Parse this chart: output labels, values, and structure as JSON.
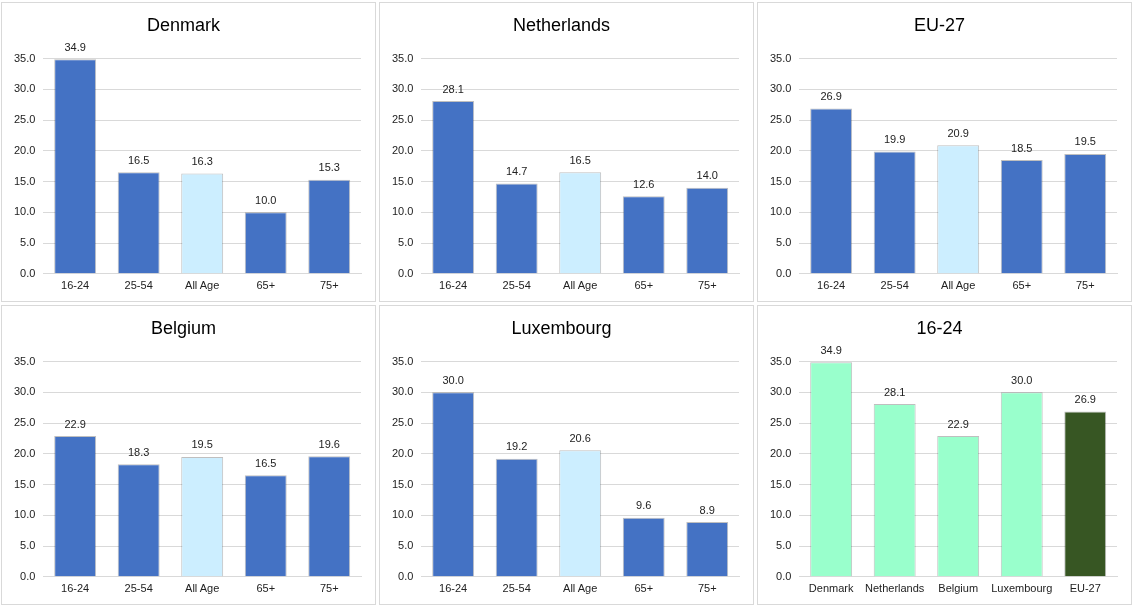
{
  "chart_data": [
    {
      "type": "bar",
      "title": "Denmark",
      "categories": [
        "16-24",
        "25-54",
        "All Age",
        "65+",
        "75+"
      ],
      "values": [
        34.9,
        16.5,
        16.3,
        10.0,
        15.3
      ],
      "value_labels": [
        "34.9",
        "16.5",
        "16.3",
        "10.0",
        "15.3"
      ],
      "colors": [
        "#4472c4",
        "#4472c4",
        "#cceeff",
        "#4472c4",
        "#4472c4"
      ],
      "ylim": [
        0,
        35
      ],
      "yticks": [
        {
          "value": 0,
          "label": "0.0"
        },
        {
          "value": 5,
          "label": "5.0"
        },
        {
          "value": 10,
          "label": "10.0"
        },
        {
          "value": 15,
          "label": "15.0"
        },
        {
          "value": 20,
          "label": "20.0"
        },
        {
          "value": 25,
          "label": "25.0"
        },
        {
          "value": 30,
          "label": "30.0"
        },
        {
          "value": 35,
          "label": "35.0"
        }
      ],
      "grid": "y",
      "legend": false
    },
    {
      "type": "bar",
      "title": "Netherlands",
      "categories": [
        "16-24",
        "25-54",
        "All Age",
        "65+",
        "75+"
      ],
      "values": [
        28.1,
        14.7,
        16.5,
        12.6,
        14.0
      ],
      "value_labels": [
        "28.1",
        "14.7",
        "16.5",
        "12.6",
        "14.0"
      ],
      "colors": [
        "#4472c4",
        "#4472c4",
        "#cceeff",
        "#4472c4",
        "#4472c4"
      ],
      "ylim": [
        0,
        35
      ],
      "yticks": [
        {
          "value": 0,
          "label": "0.0"
        },
        {
          "value": 5,
          "label": "5.0"
        },
        {
          "value": 10,
          "label": "10.0"
        },
        {
          "value": 15,
          "label": "15.0"
        },
        {
          "value": 20,
          "label": "20.0"
        },
        {
          "value": 25,
          "label": "25.0"
        },
        {
          "value": 30,
          "label": "30.0"
        },
        {
          "value": 35,
          "label": "35.0"
        }
      ],
      "grid": "y",
      "legend": false
    },
    {
      "type": "bar",
      "title": "EU-27",
      "categories": [
        "16-24",
        "25-54",
        "All Age",
        "65+",
        "75+"
      ],
      "values": [
        26.9,
        19.9,
        20.9,
        18.5,
        19.5
      ],
      "value_labels": [
        "26.9",
        "19.9",
        "20.9",
        "18.5",
        "19.5"
      ],
      "colors": [
        "#4472c4",
        "#4472c4",
        "#cceeff",
        "#4472c4",
        "#4472c4"
      ],
      "ylim": [
        0,
        35
      ],
      "yticks": [
        {
          "value": 0,
          "label": "0.0"
        },
        {
          "value": 5,
          "label": "5.0"
        },
        {
          "value": 10,
          "label": "10.0"
        },
        {
          "value": 15,
          "label": "15.0"
        },
        {
          "value": 20,
          "label": "20.0"
        },
        {
          "value": 25,
          "label": "25.0"
        },
        {
          "value": 30,
          "label": "30.0"
        },
        {
          "value": 35,
          "label": "35.0"
        }
      ],
      "grid": "y",
      "legend": false
    },
    {
      "type": "bar",
      "title": "Belgium",
      "categories": [
        "16-24",
        "25-54",
        "All Age",
        "65+",
        "75+"
      ],
      "values": [
        22.9,
        18.3,
        19.5,
        16.5,
        19.6
      ],
      "value_labels": [
        "22.9",
        "18.3",
        "19.5",
        "16.5",
        "19.6"
      ],
      "colors": [
        "#4472c4",
        "#4472c4",
        "#cceeff",
        "#4472c4",
        "#4472c4"
      ],
      "ylim": [
        0,
        35
      ],
      "yticks": [
        {
          "value": 0,
          "label": "0.0"
        },
        {
          "value": 5,
          "label": "5.0"
        },
        {
          "value": 10,
          "label": "10.0"
        },
        {
          "value": 15,
          "label": "15.0"
        },
        {
          "value": 20,
          "label": "20.0"
        },
        {
          "value": 25,
          "label": "25.0"
        },
        {
          "value": 30,
          "label": "30.0"
        },
        {
          "value": 35,
          "label": "35.0"
        }
      ],
      "grid": "y",
      "legend": false
    },
    {
      "type": "bar",
      "title": "Luxembourg",
      "categories": [
        "16-24",
        "25-54",
        "All Age",
        "65+",
        "75+"
      ],
      "values": [
        30.0,
        19.2,
        20.6,
        9.6,
        8.9
      ],
      "value_labels": [
        "30.0",
        "19.2",
        "20.6",
        "9.6",
        "8.9"
      ],
      "colors": [
        "#4472c4",
        "#4472c4",
        "#cceeff",
        "#4472c4",
        "#4472c4"
      ],
      "ylim": [
        0,
        35
      ],
      "yticks": [
        {
          "value": 0,
          "label": "0.0"
        },
        {
          "value": 5,
          "label": "5.0"
        },
        {
          "value": 10,
          "label": "10.0"
        },
        {
          "value": 15,
          "label": "15.0"
        },
        {
          "value": 20,
          "label": "20.0"
        },
        {
          "value": 25,
          "label": "25.0"
        },
        {
          "value": 30,
          "label": "30.0"
        },
        {
          "value": 35,
          "label": "35.0"
        }
      ],
      "grid": "y",
      "legend": false
    },
    {
      "type": "bar",
      "title": "16-24",
      "categories": [
        "Denmark",
        "Netherlands",
        "Belgium",
        "Luxembourg",
        "EU-27"
      ],
      "values": [
        34.9,
        28.1,
        22.9,
        30.0,
        26.9
      ],
      "value_labels": [
        "34.9",
        "28.1",
        "22.9",
        "30.0",
        "26.9"
      ],
      "colors": [
        "#99ffcc",
        "#99ffcc",
        "#99ffcc",
        "#99ffcc",
        "#375623"
      ],
      "ylim": [
        0,
        35
      ],
      "yticks": [
        {
          "value": 0,
          "label": "0.0"
        },
        {
          "value": 5,
          "label": "5.0"
        },
        {
          "value": 10,
          "label": "10.0"
        },
        {
          "value": 15,
          "label": "15.0"
        },
        {
          "value": 20,
          "label": "20.0"
        },
        {
          "value": 25,
          "label": "25.0"
        },
        {
          "value": 30,
          "label": "30.0"
        },
        {
          "value": 35,
          "label": "35.0"
        }
      ],
      "grid": "y",
      "legend": false
    }
  ]
}
